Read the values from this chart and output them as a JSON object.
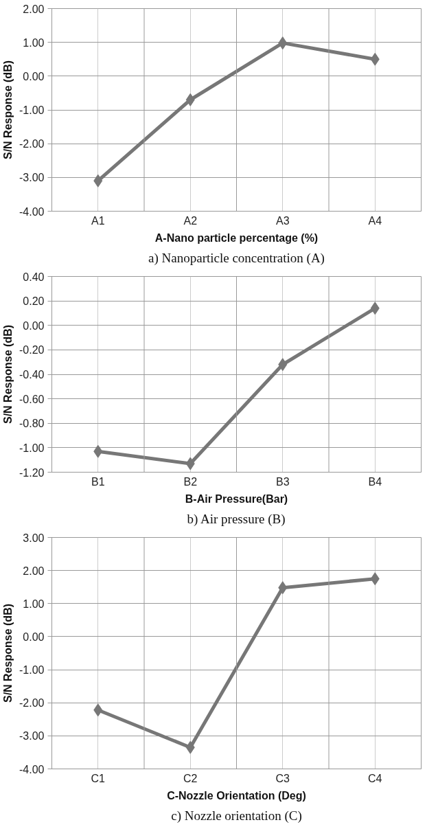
{
  "chart_data": [
    {
      "type": "line",
      "categories": [
        "A1",
        "A2",
        "A3",
        "A4"
      ],
      "xlabel": "A-Nano particle percentage (%)",
      "ylabel": "S/N Response (dB)",
      "series": [
        {
          "color": "#777777",
          "values": [
            -3.1,
            -0.7,
            0.98,
            0.5
          ]
        }
      ],
      "ylim": [
        -4,
        2
      ],
      "yticks": [
        {
          "value": -4,
          "label": "-4.00"
        },
        {
          "value": -3,
          "label": "-3.00"
        },
        {
          "value": -2,
          "label": "-2.00"
        },
        {
          "value": -1,
          "label": "-1.00"
        },
        {
          "value": 0,
          "label": "0.00"
        },
        {
          "value": 1,
          "label": "1.00"
        },
        {
          "value": 2,
          "label": "2.00"
        }
      ],
      "grid": true,
      "marker": "diamond",
      "line_style": "solid",
      "annotations": [
        "a) Nanoparticle concentration (A)"
      ]
    },
    {
      "type": "line",
      "categories": [
        "B1",
        "B2",
        "B3",
        "B4"
      ],
      "xlabel": "B-Air Pressure(Bar)",
      "ylabel": "S/N Response (dB)",
      "series": [
        {
          "color": "#777777",
          "values": [
            -1.03,
            -1.13,
            -0.32,
            0.14
          ]
        }
      ],
      "ylim": [
        -1.2,
        0.4
      ],
      "yticks": [
        {
          "value": -1.2,
          "label": "-1.20"
        },
        {
          "value": -1.0,
          "label": "-1.00"
        },
        {
          "value": -0.8,
          "label": "-0.80"
        },
        {
          "value": -0.6,
          "label": "-0.60"
        },
        {
          "value": -0.4,
          "label": "-0.40"
        },
        {
          "value": -0.2,
          "label": "-0.20"
        },
        {
          "value": 0,
          "label": "0.00"
        },
        {
          "value": 0.2,
          "label": "0.20"
        },
        {
          "value": 0.4,
          "label": "0.40"
        }
      ],
      "grid": true,
      "marker": "diamond",
      "line_style": "solid",
      "annotations": [
        "b) Air pressure (B)"
      ]
    },
    {
      "type": "line",
      "categories": [
        "C1",
        "C2",
        "C3",
        "C4"
      ],
      "xlabel": "C-Nozzle Orientation (Deg)",
      "ylabel": "S/N Response (dB)",
      "series": [
        {
          "color": "#777777",
          "values": [
            -2.22,
            -3.35,
            1.48,
            1.75
          ]
        }
      ],
      "ylim": [
        -4,
        3
      ],
      "yticks": [
        {
          "value": -4,
          "label": "-4.00"
        },
        {
          "value": -3,
          "label": "-3.00"
        },
        {
          "value": -2,
          "label": "-2.00"
        },
        {
          "value": -1,
          "label": "-1.00"
        },
        {
          "value": 0,
          "label": "0.00"
        },
        {
          "value": 1,
          "label": "1.00"
        },
        {
          "value": 2,
          "label": "2.00"
        },
        {
          "value": 3,
          "label": "3.00"
        }
      ],
      "grid": true,
      "marker": "diamond",
      "line_style": "solid",
      "annotations": [
        "c) Nozzle orientation (C)"
      ]
    }
  ]
}
